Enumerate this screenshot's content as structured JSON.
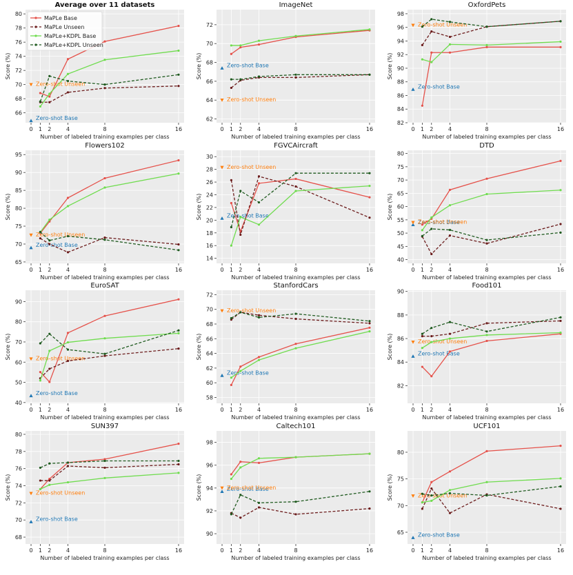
{
  "legend_style": {
    "base_color": "#e5514a",
    "unseen_color": "#6b1b1b",
    "kdpl_base_color": "#6fdc4e",
    "kdpl_unseen_color": "#1f5a1f",
    "zs_base_color": "#1f77b4",
    "zs_unseen_color": "#ff7f0e",
    "panel_bg": "#ebebeb",
    "grid_color": "#ffffff"
  },
  "shared": {
    "xlabel": "Number of labeled training examples per class",
    "ylabel": "Score (%)",
    "x": [
      1,
      2,
      4,
      8,
      16
    ],
    "x_ticks": [
      0,
      1,
      2,
      4,
      8,
      16
    ],
    "zs_base_label": "Zero-shot Base",
    "zs_unseen_label": "Zero-shot Unseen",
    "series_names": [
      "MaPLe Base",
      "MaPLe Unseen",
      "MaPLe+KDPL Base",
      "MaPLe+KDPL Unseen"
    ]
  },
  "chart_data": [
    {
      "type": "line",
      "title": "Average over 11 datasets",
      "bold_title": true,
      "legend": "top-left",
      "ylim": [
        64.6,
        80.6
      ],
      "yticks": [
        66,
        68,
        70,
        72,
        74,
        76,
        78,
        80
      ],
      "zs_base": 64.9,
      "zs_unseen": 70.0,
      "series": [
        {
          "name": "MaPLe Base",
          "values": [
            68.8,
            68.3,
            73.6,
            76.1,
            78.3
          ]
        },
        {
          "name": "MaPLe Unseen",
          "values": [
            67.5,
            67.5,
            68.9,
            69.5,
            69.8
          ]
        },
        {
          "name": "MaPLe+KDPL Base",
          "values": [
            66.9,
            68.7,
            71.5,
            73.5,
            74.8
          ]
        },
        {
          "name": "MaPLe+KDPL Unseen",
          "values": [
            67.6,
            71.2,
            70.5,
            70.0,
            71.4
          ]
        }
      ]
    },
    {
      "type": "line",
      "title": "ImageNet",
      "ylim": [
        61.6,
        73.6
      ],
      "yticks": [
        62,
        64,
        66,
        68,
        70,
        72
      ],
      "zs_base": 67.4,
      "zs_unseen": 64.0,
      "series": [
        {
          "name": "MaPLe Base",
          "values": [
            68.9,
            69.6,
            69.9,
            70.7,
            71.4
          ]
        },
        {
          "name": "MaPLe Unseen",
          "values": [
            65.3,
            66.1,
            66.4,
            66.4,
            66.7
          ]
        },
        {
          "name": "MaPLe+KDPL Base",
          "values": [
            69.8,
            69.8,
            70.3,
            70.8,
            71.5
          ]
        },
        {
          "name": "MaPLe+KDPL Unseen",
          "values": [
            66.2,
            66.2,
            66.5,
            66.7,
            66.7
          ]
        }
      ]
    },
    {
      "type": "line",
      "title": "OxfordPets",
      "ylim": [
        82,
        98.6
      ],
      "yticks": [
        82,
        84,
        86,
        88,
        90,
        92,
        94,
        96,
        98
      ],
      "zs_base": 86.9,
      "zs_unseen": 96.3,
      "series": [
        {
          "name": "MaPLe Base",
          "values": [
            84.5,
            92.3,
            92.3,
            93.1,
            93.1
          ]
        },
        {
          "name": "MaPLe Unseen",
          "values": [
            93.4,
            95.4,
            94.6,
            96.1,
            96.9
          ]
        },
        {
          "name": "MaPLe+KDPL Base",
          "values": [
            91.3,
            90.9,
            93.5,
            93.4,
            93.9
          ]
        },
        {
          "name": "MaPLe+KDPL Unseen",
          "values": [
            96.1,
            97.2,
            96.8,
            96.1,
            96.9
          ]
        }
      ]
    },
    {
      "type": "line",
      "title": "Flowers102",
      "ylim": [
        64.6,
        96.2
      ],
      "yticks": [
        65,
        70,
        75,
        80,
        85,
        90,
        95
      ],
      "zs_base": 69.0,
      "zs_unseen": 72.5,
      "series": [
        {
          "name": "MaPLe Base",
          "values": [
            73.0,
            76.3,
            82.9,
            88.4,
            93.4
          ]
        },
        {
          "name": "MaPLe Unseen",
          "values": [
            71.6,
            70.0,
            67.7,
            71.8,
            69.9
          ]
        },
        {
          "name": "MaPLe+KDPL Base",
          "values": [
            73.3,
            76.8,
            80.6,
            85.8,
            89.7
          ]
        },
        {
          "name": "MaPLe+KDPL Unseen",
          "values": [
            73.4,
            71.0,
            72.2,
            71.2,
            68.3
          ]
        }
      ]
    },
    {
      "type": "line",
      "title": "FGVCAircraft",
      "ylim": [
        13.2,
        31.0
      ],
      "yticks": [
        14,
        16,
        18,
        20,
        22,
        24,
        26,
        28,
        30
      ],
      "zs_base": 20.3,
      "zs_unseen": 28.3,
      "series": [
        {
          "name": "MaPLe Base",
          "values": [
            22.7,
            18.2,
            25.8,
            26.5,
            23.6
          ]
        },
        {
          "name": "MaPLe Unseen",
          "values": [
            26.3,
            17.7,
            26.9,
            25.3,
            20.4
          ]
        },
        {
          "name": "MaPLe+KDPL Base",
          "values": [
            16.0,
            20.5,
            19.3,
            24.6,
            25.4
          ]
        },
        {
          "name": "MaPLe+KDPL Unseen",
          "values": [
            18.9,
            24.6,
            22.8,
            27.4,
            27.4
          ]
        }
      ]
    },
    {
      "type": "line",
      "title": "DTD",
      "ylim": [
        38.6,
        81.2
      ],
      "yticks": [
        40,
        45,
        50,
        55,
        60,
        65,
        70,
        75,
        80
      ],
      "zs_base": 53.2,
      "zs_unseen": 54.0,
      "series": [
        {
          "name": "MaPLe Base",
          "values": [
            53.2,
            55.4,
            66.3,
            70.5,
            77.2
          ]
        },
        {
          "name": "MaPLe Unseen",
          "values": [
            48.7,
            42.1,
            49.1,
            46.1,
            53.4
          ]
        },
        {
          "name": "MaPLe+KDPL Base",
          "values": [
            51.1,
            55.9,
            60.5,
            64.7,
            66.2
          ]
        },
        {
          "name": "MaPLe+KDPL Unseen",
          "values": [
            48.9,
            51.6,
            51.2,
            47.4,
            50.2
          ]
        }
      ]
    },
    {
      "type": "line",
      "title": "EuroSAT",
      "ylim": [
        39.6,
        95.6
      ],
      "yticks": [
        40,
        50,
        60,
        70,
        80,
        90
      ],
      "zs_base": 43.4,
      "zs_unseen": 61.6,
      "series": [
        {
          "name": "MaPLe Base",
          "values": [
            55.1,
            50.2,
            74.5,
            82.9,
            91.1
          ]
        },
        {
          "name": "MaPLe Unseen",
          "values": [
            52.0,
            56.7,
            60.6,
            63.1,
            66.7
          ]
        },
        {
          "name": "MaPLe+KDPL Base",
          "values": [
            50.9,
            65.6,
            69.8,
            71.8,
            74.3
          ]
        },
        {
          "name": "MaPLe+KDPL Unseen",
          "values": [
            69.3,
            74.0,
            66.2,
            64.1,
            75.7
          ]
        }
      ]
    },
    {
      "type": "line",
      "title": "StanfordCars",
      "ylim": [
        57.2,
        72.6
      ],
      "yticks": [
        58,
        60,
        62,
        64,
        66,
        68,
        70,
        72
      ],
      "zs_base": 61.0,
      "zs_unseen": 69.8,
      "series": [
        {
          "name": "MaPLe Base",
          "values": [
            59.7,
            62.2,
            63.5,
            65.3,
            67.5
          ]
        },
        {
          "name": "MaPLe Unseen",
          "values": [
            68.6,
            69.6,
            69.2,
            68.7,
            68.1
          ]
        },
        {
          "name": "MaPLe+KDPL Base",
          "values": [
            60.7,
            61.6,
            63.1,
            64.7,
            67.0
          ]
        },
        {
          "name": "MaPLe+KDPL Unseen",
          "values": [
            68.8,
            69.6,
            68.9,
            69.4,
            68.4
          ]
        }
      ]
    },
    {
      "type": "line",
      "title": "Food101",
      "ylim": [
        80.5,
        90.1
      ],
      "yticks": [
        82,
        84,
        86,
        88,
        90
      ],
      "zs_base": 84.5,
      "zs_unseen": 85.7,
      "series": [
        {
          "name": "MaPLe Base",
          "values": [
            83.6,
            82.8,
            84.9,
            85.8,
            86.4
          ]
        },
        {
          "name": "MaPLe Unseen",
          "values": [
            86.2,
            86.2,
            86.4,
            87.3,
            87.5
          ]
        },
        {
          "name": "MaPLe+KDPL Base",
          "values": [
            85.2,
            85.7,
            86.0,
            86.3,
            86.5
          ]
        },
        {
          "name": "MaPLe+KDPL Unseen",
          "values": [
            86.4,
            86.9,
            87.4,
            86.6,
            87.8
          ]
        }
      ]
    },
    {
      "type": "line",
      "title": "SUN397",
      "ylim": [
        67.2,
        80.4
      ],
      "yticks": [
        68,
        70,
        72,
        74,
        76,
        78,
        80
      ],
      "zs_base": 69.8,
      "zs_unseen": 73.1,
      "series": [
        {
          "name": "MaPLe Base",
          "values": [
            73.6,
            74.8,
            76.7,
            77.1,
            78.9
          ]
        },
        {
          "name": "MaPLe Unseen",
          "values": [
            74.6,
            74.6,
            76.3,
            76.1,
            76.5
          ]
        },
        {
          "name": "MaPLe+KDPL Base",
          "values": [
            73.6,
            74.1,
            74.4,
            74.9,
            75.5
          ]
        },
        {
          "name": "MaPLe+KDPL Unseen",
          "values": [
            76.1,
            76.6,
            76.7,
            76.9,
            76.9
          ]
        }
      ]
    },
    {
      "type": "line",
      "title": "Caltech101",
      "ylim": [
        89.1,
        99.0
      ],
      "yticks": [
        90,
        92,
        94,
        96,
        98
      ],
      "zs_base": 93.7,
      "zs_unseen": 94.0,
      "series": [
        {
          "name": "MaPLe Base",
          "values": [
            95.2,
            96.3,
            96.2,
            96.7,
            97.0
          ]
        },
        {
          "name": "MaPLe Unseen",
          "values": [
            91.8,
            91.4,
            92.3,
            91.7,
            92.2
          ]
        },
        {
          "name": "MaPLe+KDPL Base",
          "values": [
            94.8,
            95.8,
            96.6,
            96.7,
            97.0
          ]
        },
        {
          "name": "MaPLe+KDPL Unseen",
          "values": [
            91.7,
            93.4,
            92.7,
            92.8,
            93.7
          ]
        }
      ]
    },
    {
      "type": "line",
      "title": "UCF101",
      "ylim": [
        62.8,
        84.0
      ],
      "yticks": [
        65,
        70,
        75,
        80
      ],
      "zs_base": 64.0,
      "zs_unseen": 71.8,
      "series": [
        {
          "name": "MaPLe Base",
          "values": [
            70.6,
            74.4,
            76.4,
            80.2,
            81.2
          ]
        },
        {
          "name": "MaPLe Unseen",
          "values": [
            69.4,
            73.2,
            68.6,
            72.1,
            69.4
          ]
        },
        {
          "name": "MaPLe+KDPL Base",
          "values": [
            70.6,
            70.9,
            72.9,
            74.4,
            75.1
          ]
        },
        {
          "name": "MaPLe+KDPL Unseen",
          "values": [
            72.2,
            71.9,
            72.3,
            71.9,
            73.6
          ]
        }
      ]
    }
  ]
}
